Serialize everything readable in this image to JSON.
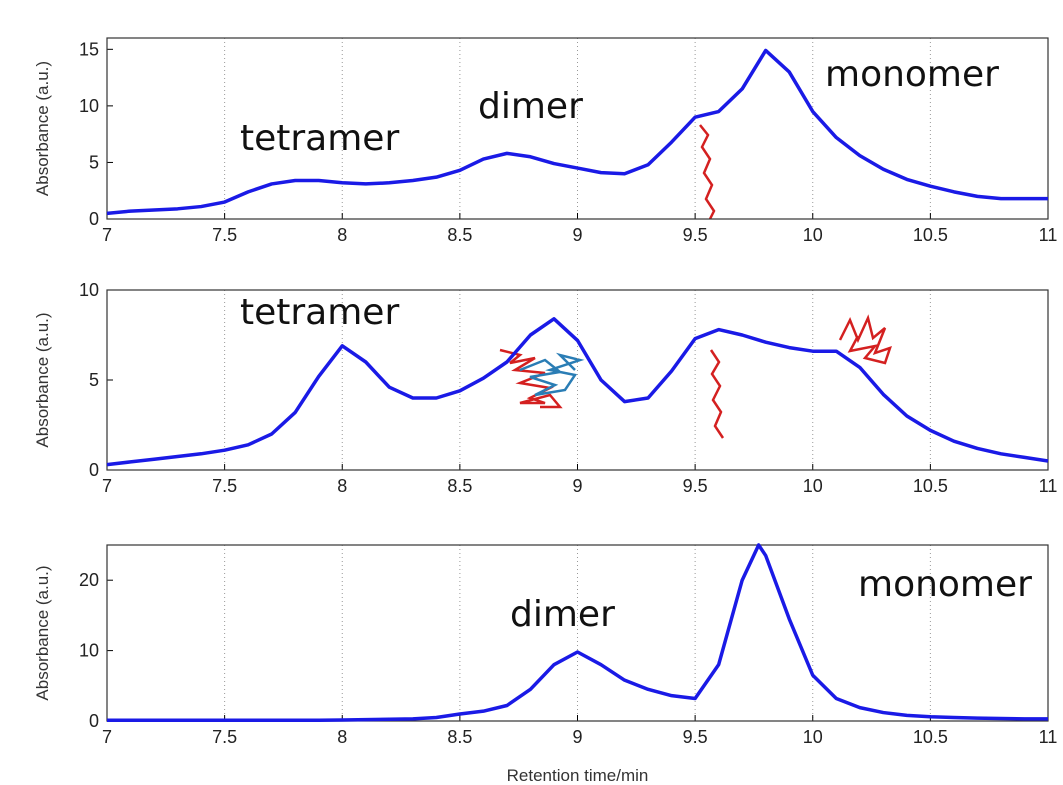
{
  "chart_data": [
    {
      "type": "line",
      "ylabel": "Absorbance (a.u.)",
      "annotations": [
        "tetramer",
        "dimer",
        "monomer"
      ],
      "x": [
        7,
        7.1,
        7.2,
        7.3,
        7.4,
        7.5,
        7.6,
        7.7,
        7.8,
        7.9,
        8,
        8.1,
        8.2,
        8.3,
        8.4,
        8.5,
        8.6,
        8.7,
        8.8,
        8.9,
        9,
        9.1,
        9.2,
        9.3,
        9.4,
        9.5,
        9.6,
        9.7,
        9.8,
        9.9,
        10,
        10.1,
        10.2,
        10.3,
        10.4,
        10.5,
        10.6,
        10.7,
        10.8,
        10.9,
        11
      ],
      "series": [
        {
          "color": "#1a1ae6",
          "values": [
            0.5,
            0.7,
            0.8,
            0.9,
            1.1,
            1.5,
            2.4,
            3.1,
            3.4,
            3.4,
            3.2,
            3.1,
            3.2,
            3.4,
            3.7,
            4.3,
            5.3,
            5.8,
            5.5,
            4.9,
            4.5,
            4.1,
            4.0,
            4.8,
            6.8,
            9.0,
            9.5,
            11.5,
            14.9,
            13.0,
            9.5,
            7.2,
            5.6,
            4.4,
            3.5,
            2.9,
            2.4,
            2.0,
            1.8,
            1.8,
            1.8
          ]
        }
      ],
      "xlim": [
        7,
        11
      ],
      "xticks": [
        7,
        7.5,
        8,
        8.5,
        9,
        9.5,
        10,
        10.5,
        11
      ],
      "ylim": [
        0,
        16
      ],
      "yticks": [
        0,
        5,
        10,
        15
      ],
      "grid": "x"
    },
    {
      "type": "line",
      "ylabel": "Absorbance (a.u.)",
      "annotations": [
        "tetramer"
      ],
      "x": [
        7,
        7.1,
        7.2,
        7.3,
        7.4,
        7.5,
        7.6,
        7.7,
        7.8,
        7.9,
        8,
        8.1,
        8.2,
        8.3,
        8.4,
        8.5,
        8.6,
        8.7,
        8.8,
        8.9,
        9,
        9.1,
        9.2,
        9.3,
        9.4,
        9.5,
        9.6,
        9.7,
        9.8,
        9.9,
        10,
        10.1,
        10.2,
        10.3,
        10.4,
        10.5,
        10.6,
        10.7,
        10.8,
        10.9,
        11
      ],
      "series": [
        {
          "color": "#1a1ae6",
          "values": [
            0.3,
            0.45,
            0.6,
            0.75,
            0.9,
            1.1,
            1.4,
            2.0,
            3.2,
            5.2,
            6.9,
            6.0,
            4.6,
            4.0,
            4.0,
            4.4,
            5.1,
            6.0,
            7.5,
            8.4,
            7.2,
            5.0,
            3.8,
            4.0,
            5.5,
            7.3,
            7.8,
            7.5,
            7.1,
            6.8,
            6.6,
            6.6,
            5.7,
            4.2,
            3.0,
            2.2,
            1.6,
            1.2,
            0.9,
            0.7,
            0.5
          ]
        }
      ],
      "xlim": [
        7,
        11
      ],
      "xticks": [
        7,
        7.5,
        8,
        8.5,
        9,
        9.5,
        10,
        10.5,
        11
      ],
      "ylim": [
        0,
        10
      ],
      "yticks": [
        0,
        5,
        10
      ],
      "grid": "x"
    },
    {
      "type": "line",
      "ylabel": "Absorbance (a.u.)",
      "xlabel": "Retention time/min",
      "annotations": [
        "dimer",
        "monomer"
      ],
      "x": [
        7,
        7.1,
        7.2,
        7.3,
        7.4,
        7.5,
        7.6,
        7.7,
        7.8,
        7.9,
        8,
        8.1,
        8.2,
        8.3,
        8.4,
        8.5,
        8.6,
        8.7,
        8.8,
        8.9,
        9,
        9.1,
        9.2,
        9.3,
        9.4,
        9.5,
        9.6,
        9.7,
        9.77,
        9.8,
        9.9,
        10,
        10.1,
        10.2,
        10.3,
        10.4,
        10.5,
        10.6,
        10.7,
        10.8,
        10.9,
        11
      ],
      "series": [
        {
          "color": "#1a1ae6",
          "values": [
            0.1,
            0.1,
            0.1,
            0.1,
            0.1,
            0.1,
            0.1,
            0.1,
            0.1,
            0.1,
            0.15,
            0.2,
            0.25,
            0.3,
            0.5,
            1.0,
            1.4,
            2.2,
            4.5,
            8.0,
            9.8,
            8.0,
            5.8,
            4.5,
            3.6,
            3.2,
            8.0,
            20.0,
            25.0,
            23.5,
            14.5,
            6.5,
            3.2,
            1.9,
            1.2,
            0.8,
            0.6,
            0.5,
            0.4,
            0.35,
            0.3,
            0.3
          ]
        }
      ],
      "xlim": [
        7,
        11
      ],
      "xticks": [
        7,
        7.5,
        8,
        8.5,
        9,
        9.5,
        10,
        10.5,
        11
      ],
      "ylim": [
        0,
        25
      ],
      "yticks": [
        0,
        10,
        20
      ],
      "grid": "x"
    }
  ]
}
